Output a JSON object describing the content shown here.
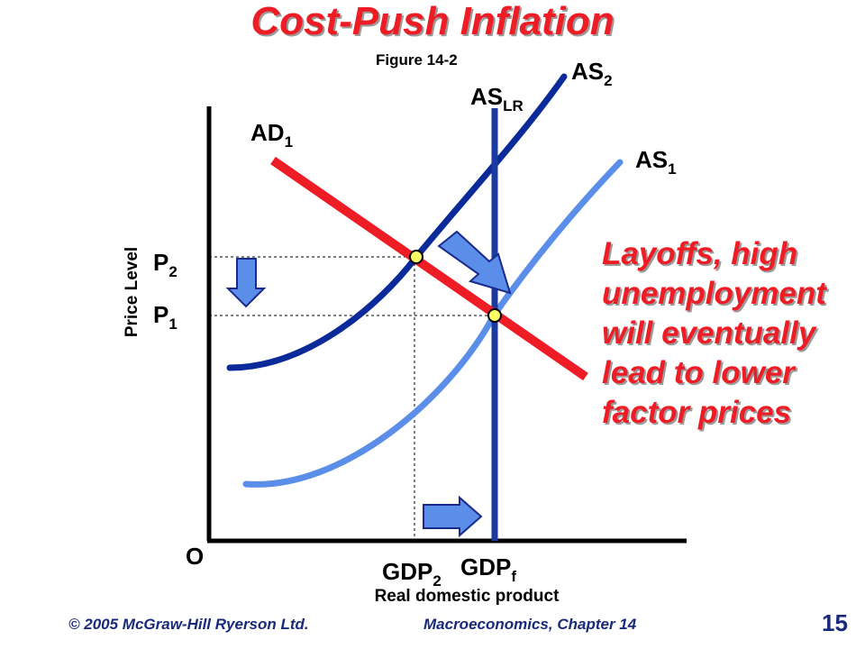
{
  "slide": {
    "title": "Cost-Push Inflation",
    "figure_ref": "Figure 14-2",
    "callout_lines": [
      "Layoffs, high",
      "unemployment",
      "will eventually",
      "lead to lower",
      "factor prices"
    ],
    "footer_left": "© 2005 McGraw-Hill Ryerson Ltd.",
    "footer_right": "Macroeconomics, Chapter 14",
    "page_number": "15"
  },
  "diagram": {
    "origin_label": "O",
    "y_axis_label": "Price Level",
    "x_axis_label": "Real domestic product",
    "curves": {
      "as2": {
        "base": "AS",
        "sub": "2"
      },
      "aslr": {
        "base": "AS",
        "sub": "LR"
      },
      "ad1": {
        "base": "AD",
        "sub": "1"
      },
      "as1": {
        "base": "AS",
        "sub": "1"
      }
    },
    "price_levels": {
      "p2": {
        "base": "P",
        "sub": "2"
      },
      "p1": {
        "base": "P",
        "sub": "1"
      }
    },
    "outputs": {
      "gdp2": {
        "base": "GDP",
        "sub": "2"
      },
      "gdpf": {
        "base": "GDP",
        "sub": "f"
      }
    },
    "colors": {
      "title": "#ee1c25",
      "ad": "#ee1c25",
      "as2": "#0a2a9a",
      "aslr": "#1a3aa0",
      "as1": "#5a8ee8",
      "arrow_fill": "#5a8ee8",
      "arrow_stroke": "#1a2a8a",
      "equilibrium_dot": "#ffff66",
      "footer": "#1a2a7a"
    }
  }
}
